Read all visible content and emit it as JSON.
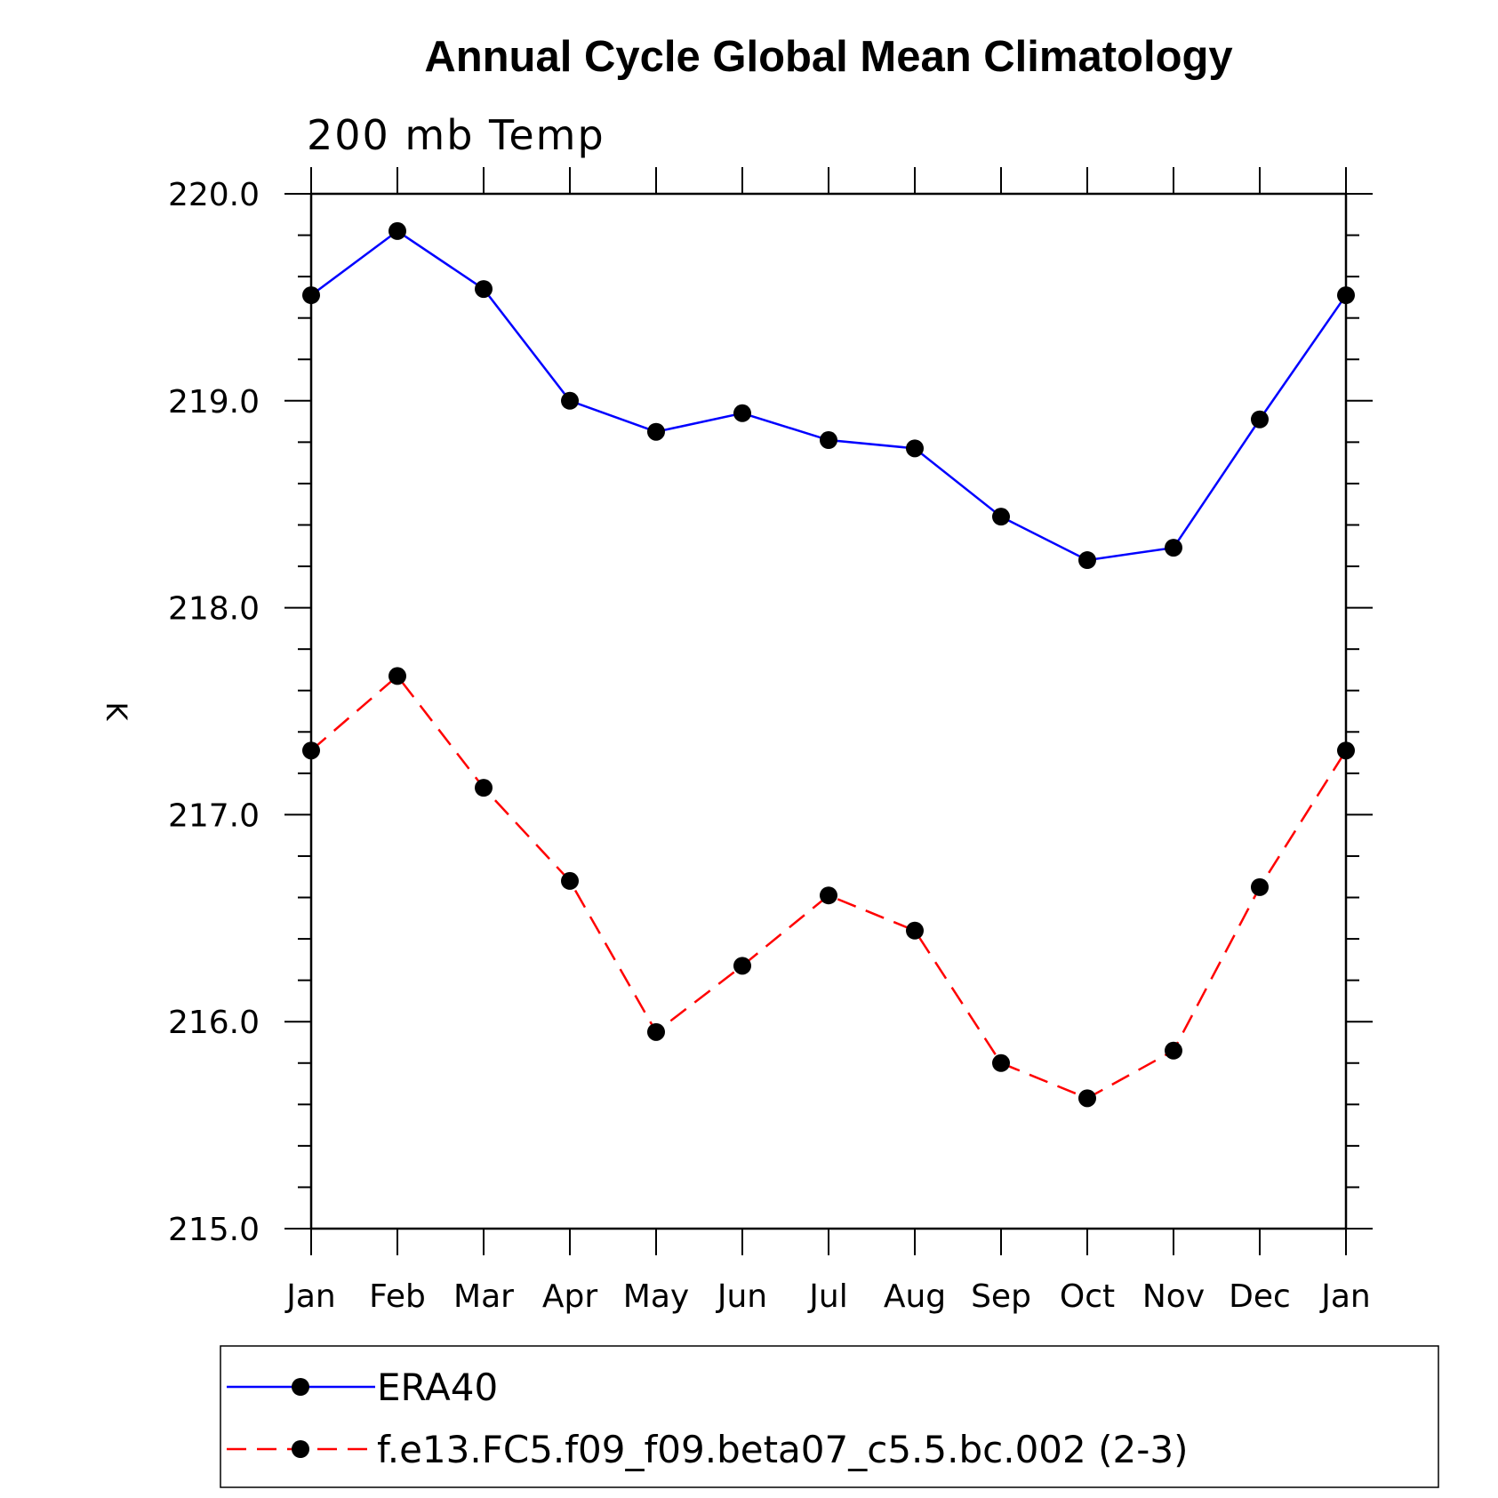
{
  "chart_data": {
    "type": "line",
    "title": "Annual Cycle Global Mean Climatology",
    "subtitle": "200 mb Temp",
    "xlabel": "",
    "ylabel": "K",
    "categories": [
      "Jan",
      "Feb",
      "Mar",
      "Apr",
      "May",
      "Jun",
      "Jul",
      "Aug",
      "Sep",
      "Oct",
      "Nov",
      "Dec",
      "Jan"
    ],
    "ylim": [
      215.0,
      220.0
    ],
    "yticks": [
      "215.0",
      "216.0",
      "217.0",
      "218.0",
      "219.0",
      "220.0"
    ],
    "grid": false,
    "legend_position": "bottom",
    "series": [
      {
        "name": "ERA40",
        "color": "#0000ff",
        "line_style": "solid",
        "marker": "filled-circle",
        "values": [
          219.51,
          219.82,
          219.54,
          219.0,
          218.85,
          218.94,
          218.81,
          218.77,
          218.44,
          218.23,
          218.29,
          218.91,
          219.51
        ]
      },
      {
        "name": "f.e13.FC5.f09_f09.beta07_c5.5.bc.002 (2-3)",
        "color": "#ff0000",
        "line_style": "dashed",
        "marker": "filled-circle",
        "values": [
          217.31,
          217.67,
          217.13,
          216.68,
          215.95,
          216.27,
          216.61,
          216.44,
          215.8,
          215.63,
          215.86,
          216.65,
          217.31
        ]
      }
    ]
  }
}
